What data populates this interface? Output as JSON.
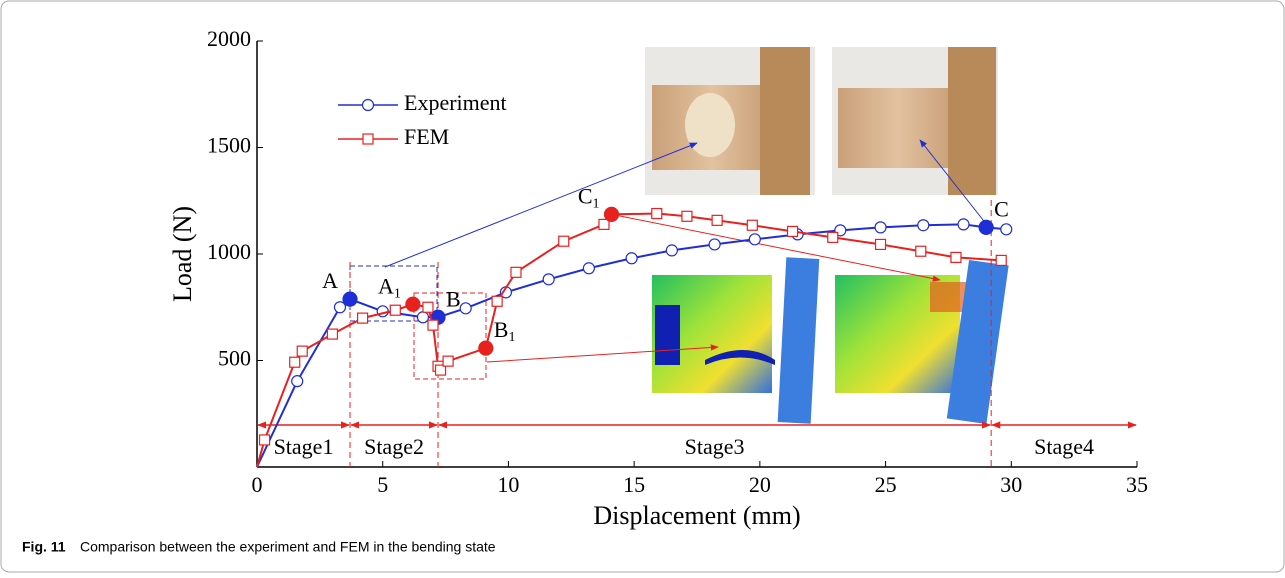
{
  "chart_data": {
    "type": "line",
    "xlabel": "Displacement (mm)",
    "ylabel": "Load (N)",
    "xlim": [
      0,
      35
    ],
    "xticks": [
      0,
      5,
      10,
      15,
      20,
      25,
      30,
      35
    ],
    "ylim": [
      0,
      2000
    ],
    "yticks": [
      500,
      1000,
      1500,
      2000
    ],
    "legend": "upper left",
    "series": [
      {
        "name": "Experiment",
        "color": "#1f2fd6",
        "marker": "circle",
        "x": [
          0,
          1.6,
          3.3,
          3.7,
          5.0,
          6.6,
          7.2,
          8.3,
          9.9,
          11.6,
          13.2,
          14.9,
          16.5,
          18.2,
          19.8,
          21.5,
          23.2,
          24.8,
          26.5,
          28.1,
          29.0,
          29.8
        ],
        "values": [
          0,
          403,
          750,
          788,
          731,
          703,
          703,
          745,
          820,
          881,
          933,
          980,
          1017,
          1045,
          1069,
          1092,
          1111,
          1125,
          1135,
          1139,
          1125,
          1116
        ],
        "point_labels": [
          {
            "index": 3,
            "text": "A",
            "anchor": "nw"
          },
          {
            "index": 6,
            "text": "B",
            "anchor": "ne"
          },
          {
            "index": 20,
            "text": "C",
            "anchor": "ne"
          }
        ]
      },
      {
        "name": "FEM",
        "color": "#e8211f",
        "marker": "square",
        "x": [
          0,
          0.3,
          1.5,
          1.8,
          3.0,
          4.2,
          5.5,
          6.2,
          6.8,
          7.0,
          7.2,
          7.3,
          7.6,
          9.1,
          9.55,
          10.3,
          12.2,
          13.8,
          14.1,
          15.9,
          17.1,
          18.3,
          19.7,
          21.3,
          22.9,
          24.8,
          26.4,
          27.8,
          29.6
        ],
        "values": [
          0,
          127,
          492,
          544,
          624,
          699,
          736,
          764,
          750,
          666,
          473,
          455,
          497,
          558,
          778,
          914,
          1060,
          1139,
          1186,
          1190,
          1177,
          1158,
          1135,
          1106,
          1078,
          1045,
          1013,
          984,
          970
        ],
        "point_labels": [
          {
            "index": 7,
            "text": "A",
            "sub": "1",
            "anchor": "nw"
          },
          {
            "index": 13,
            "text": "B",
            "sub": "1",
            "anchor": "ne"
          },
          {
            "index": 18,
            "text": "C",
            "sub": "1",
            "anchor": "nw"
          }
        ]
      }
    ],
    "stages": {
      "boundaries": [
        3.7,
        7.2,
        29.2
      ],
      "labels": [
        "Stage1",
        "Stage2",
        "Stage3",
        "Stage4"
      ],
      "color": "#e8211f"
    }
  },
  "caption": {
    "label": "Fig. 11",
    "text": "Comparison between the experiment and FEM in the bending state"
  }
}
